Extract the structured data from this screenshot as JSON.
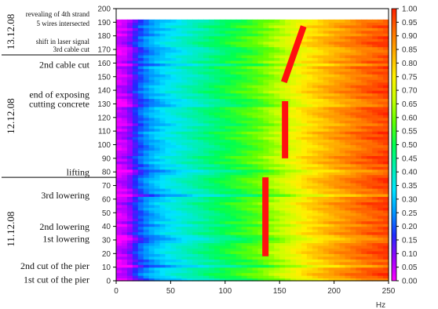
{
  "chart_data": {
    "type": "heatmap",
    "title": "",
    "xlabel": "Hz",
    "ylabel": "",
    "xlim": [
      0,
      250
    ],
    "ylim": [
      0,
      200
    ],
    "x_ticks": [
      0,
      50,
      100,
      150,
      200,
      250
    ],
    "y_ticks": [
      0,
      10,
      20,
      30,
      40,
      50,
      60,
      70,
      80,
      90,
      100,
      110,
      120,
      130,
      140,
      150,
      160,
      170,
      180,
      190,
      200
    ],
    "data_extent_y": [
      0,
      191
    ],
    "colorbar": {
      "min": 0,
      "max": 1,
      "ticks": [
        "0.00",
        "0.05",
        "0.10",
        "0.15",
        "0.20",
        "0.25",
        "0.30",
        "0.35",
        "0.40",
        "0.45",
        "0.50",
        "0.55",
        "0.60",
        "0.65",
        "0.70",
        "0.75",
        "0.80",
        "0.85",
        "0.90",
        "0.95",
        "1.00"
      ],
      "colors": [
        "#ff00ff",
        "#9a00ff",
        "#1f2bff",
        "#0096ff",
        "#00e4ff",
        "#00f0b0",
        "#00ff50",
        "#60ff00",
        "#c8ff00",
        "#fff000",
        "#ffb000",
        "#ff7000",
        "#ff2000"
      ]
    },
    "annotations": [
      {
        "text": "revealing of 4th strand",
        "y": 196
      },
      {
        "text": "5 wires intersected",
        "y": 189
      },
      {
        "text": "shift in laser signal",
        "y": 176
      },
      {
        "text": "3rd cable cut",
        "y": 170
      },
      {
        "text": "2nd cable cut",
        "y": 159
      },
      {
        "text": "end of exposing",
        "y": 137
      },
      {
        "text": "cutting concrete",
        "y": 130
      },
      {
        "text": "lifting",
        "y": 80
      },
      {
        "text": "3rd lowering",
        "y": 63
      },
      {
        "text": "2nd lowering",
        "y": 40
      },
      {
        "text": "1st lowering",
        "y": 31
      },
      {
        "text": "2nd cut of the pier",
        "y": 11
      },
      {
        "text": "1st cut of the pier",
        "y": 1
      }
    ],
    "date_labels": [
      {
        "text": "13.12.08",
        "y_range": [
          166,
          200
        ]
      },
      {
        "text": "12.12.08",
        "y_range": [
          76,
          166
        ]
      },
      {
        "text": "11.12.08",
        "y_range": [
          0,
          76
        ]
      }
    ],
    "separators_y": [
      166,
      76
    ],
    "trend_lines": [
      {
        "x": [
          154,
          172
        ],
        "y": [
          146,
          187
        ]
      },
      {
        "x": [
          155,
          155
        ],
        "y": [
          90,
          132
        ]
      },
      {
        "x": [
          137,
          137
        ],
        "y": [
          18,
          76
        ]
      }
    ],
    "events_y": [
      1,
      11,
      31,
      40,
      63,
      80,
      130,
      159,
      170,
      191
    ],
    "profile": [
      {
        "f": 0,
        "v": 0.03
      },
      {
        "f": 10,
        "v": 0.06
      },
      {
        "f": 18,
        "v": 0.16
      },
      {
        "f": 24,
        "v": 0.22
      },
      {
        "f": 32,
        "v": 0.27
      },
      {
        "f": 45,
        "v": 0.33
      },
      {
        "f": 70,
        "v": 0.41
      },
      {
        "f": 100,
        "v": 0.5
      },
      {
        "f": 130,
        "v": 0.58
      },
      {
        "f": 155,
        "v": 0.68
      },
      {
        "f": 175,
        "v": 0.77
      },
      {
        "f": 200,
        "v": 0.85
      },
      {
        "f": 225,
        "v": 0.92
      },
      {
        "f": 250,
        "v": 0.97
      }
    ]
  }
}
